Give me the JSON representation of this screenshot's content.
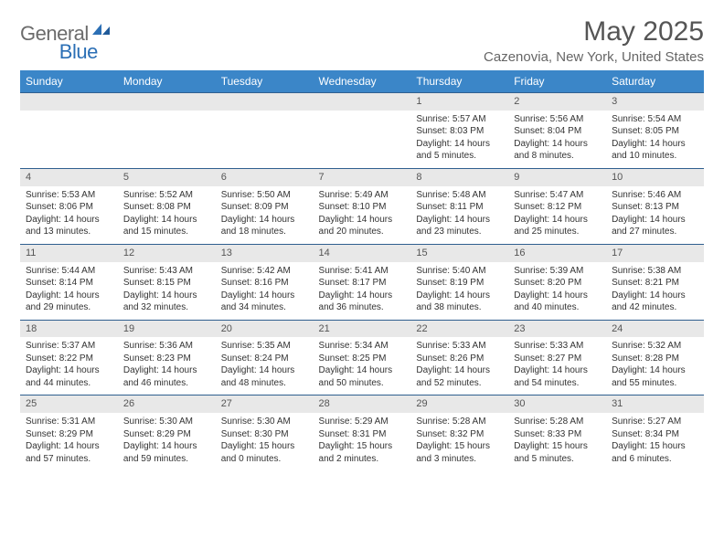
{
  "brand": {
    "word1": "General",
    "word2": "Blue"
  },
  "title": "May 2025",
  "location": "Cazenovia, New York, United States",
  "header_bg": "#3b86c8",
  "row_border": "#2f5f8f",
  "daynum_bg": "#e8e8e8",
  "weekdays": [
    "Sunday",
    "Monday",
    "Tuesday",
    "Wednesday",
    "Thursday",
    "Friday",
    "Saturday"
  ],
  "weeks": [
    [
      null,
      null,
      null,
      null,
      {
        "n": "1",
        "sr": "Sunrise: 5:57 AM",
        "ss": "Sunset: 8:03 PM",
        "dl": "Daylight: 14 hours and 5 minutes."
      },
      {
        "n": "2",
        "sr": "Sunrise: 5:56 AM",
        "ss": "Sunset: 8:04 PM",
        "dl": "Daylight: 14 hours and 8 minutes."
      },
      {
        "n": "3",
        "sr": "Sunrise: 5:54 AM",
        "ss": "Sunset: 8:05 PM",
        "dl": "Daylight: 14 hours and 10 minutes."
      }
    ],
    [
      {
        "n": "4",
        "sr": "Sunrise: 5:53 AM",
        "ss": "Sunset: 8:06 PM",
        "dl": "Daylight: 14 hours and 13 minutes."
      },
      {
        "n": "5",
        "sr": "Sunrise: 5:52 AM",
        "ss": "Sunset: 8:08 PM",
        "dl": "Daylight: 14 hours and 15 minutes."
      },
      {
        "n": "6",
        "sr": "Sunrise: 5:50 AM",
        "ss": "Sunset: 8:09 PM",
        "dl": "Daylight: 14 hours and 18 minutes."
      },
      {
        "n": "7",
        "sr": "Sunrise: 5:49 AM",
        "ss": "Sunset: 8:10 PM",
        "dl": "Daylight: 14 hours and 20 minutes."
      },
      {
        "n": "8",
        "sr": "Sunrise: 5:48 AM",
        "ss": "Sunset: 8:11 PM",
        "dl": "Daylight: 14 hours and 23 minutes."
      },
      {
        "n": "9",
        "sr": "Sunrise: 5:47 AM",
        "ss": "Sunset: 8:12 PM",
        "dl": "Daylight: 14 hours and 25 minutes."
      },
      {
        "n": "10",
        "sr": "Sunrise: 5:46 AM",
        "ss": "Sunset: 8:13 PM",
        "dl": "Daylight: 14 hours and 27 minutes."
      }
    ],
    [
      {
        "n": "11",
        "sr": "Sunrise: 5:44 AM",
        "ss": "Sunset: 8:14 PM",
        "dl": "Daylight: 14 hours and 29 minutes."
      },
      {
        "n": "12",
        "sr": "Sunrise: 5:43 AM",
        "ss": "Sunset: 8:15 PM",
        "dl": "Daylight: 14 hours and 32 minutes."
      },
      {
        "n": "13",
        "sr": "Sunrise: 5:42 AM",
        "ss": "Sunset: 8:16 PM",
        "dl": "Daylight: 14 hours and 34 minutes."
      },
      {
        "n": "14",
        "sr": "Sunrise: 5:41 AM",
        "ss": "Sunset: 8:17 PM",
        "dl": "Daylight: 14 hours and 36 minutes."
      },
      {
        "n": "15",
        "sr": "Sunrise: 5:40 AM",
        "ss": "Sunset: 8:19 PM",
        "dl": "Daylight: 14 hours and 38 minutes."
      },
      {
        "n": "16",
        "sr": "Sunrise: 5:39 AM",
        "ss": "Sunset: 8:20 PM",
        "dl": "Daylight: 14 hours and 40 minutes."
      },
      {
        "n": "17",
        "sr": "Sunrise: 5:38 AM",
        "ss": "Sunset: 8:21 PM",
        "dl": "Daylight: 14 hours and 42 minutes."
      }
    ],
    [
      {
        "n": "18",
        "sr": "Sunrise: 5:37 AM",
        "ss": "Sunset: 8:22 PM",
        "dl": "Daylight: 14 hours and 44 minutes."
      },
      {
        "n": "19",
        "sr": "Sunrise: 5:36 AM",
        "ss": "Sunset: 8:23 PM",
        "dl": "Daylight: 14 hours and 46 minutes."
      },
      {
        "n": "20",
        "sr": "Sunrise: 5:35 AM",
        "ss": "Sunset: 8:24 PM",
        "dl": "Daylight: 14 hours and 48 minutes."
      },
      {
        "n": "21",
        "sr": "Sunrise: 5:34 AM",
        "ss": "Sunset: 8:25 PM",
        "dl": "Daylight: 14 hours and 50 minutes."
      },
      {
        "n": "22",
        "sr": "Sunrise: 5:33 AM",
        "ss": "Sunset: 8:26 PM",
        "dl": "Daylight: 14 hours and 52 minutes."
      },
      {
        "n": "23",
        "sr": "Sunrise: 5:33 AM",
        "ss": "Sunset: 8:27 PM",
        "dl": "Daylight: 14 hours and 54 minutes."
      },
      {
        "n": "24",
        "sr": "Sunrise: 5:32 AM",
        "ss": "Sunset: 8:28 PM",
        "dl": "Daylight: 14 hours and 55 minutes."
      }
    ],
    [
      {
        "n": "25",
        "sr": "Sunrise: 5:31 AM",
        "ss": "Sunset: 8:29 PM",
        "dl": "Daylight: 14 hours and 57 minutes."
      },
      {
        "n": "26",
        "sr": "Sunrise: 5:30 AM",
        "ss": "Sunset: 8:29 PM",
        "dl": "Daylight: 14 hours and 59 minutes."
      },
      {
        "n": "27",
        "sr": "Sunrise: 5:30 AM",
        "ss": "Sunset: 8:30 PM",
        "dl": "Daylight: 15 hours and 0 minutes."
      },
      {
        "n": "28",
        "sr": "Sunrise: 5:29 AM",
        "ss": "Sunset: 8:31 PM",
        "dl": "Daylight: 15 hours and 2 minutes."
      },
      {
        "n": "29",
        "sr": "Sunrise: 5:28 AM",
        "ss": "Sunset: 8:32 PM",
        "dl": "Daylight: 15 hours and 3 minutes."
      },
      {
        "n": "30",
        "sr": "Sunrise: 5:28 AM",
        "ss": "Sunset: 8:33 PM",
        "dl": "Daylight: 15 hours and 5 minutes."
      },
      {
        "n": "31",
        "sr": "Sunrise: 5:27 AM",
        "ss": "Sunset: 8:34 PM",
        "dl": "Daylight: 15 hours and 6 minutes."
      }
    ]
  ]
}
